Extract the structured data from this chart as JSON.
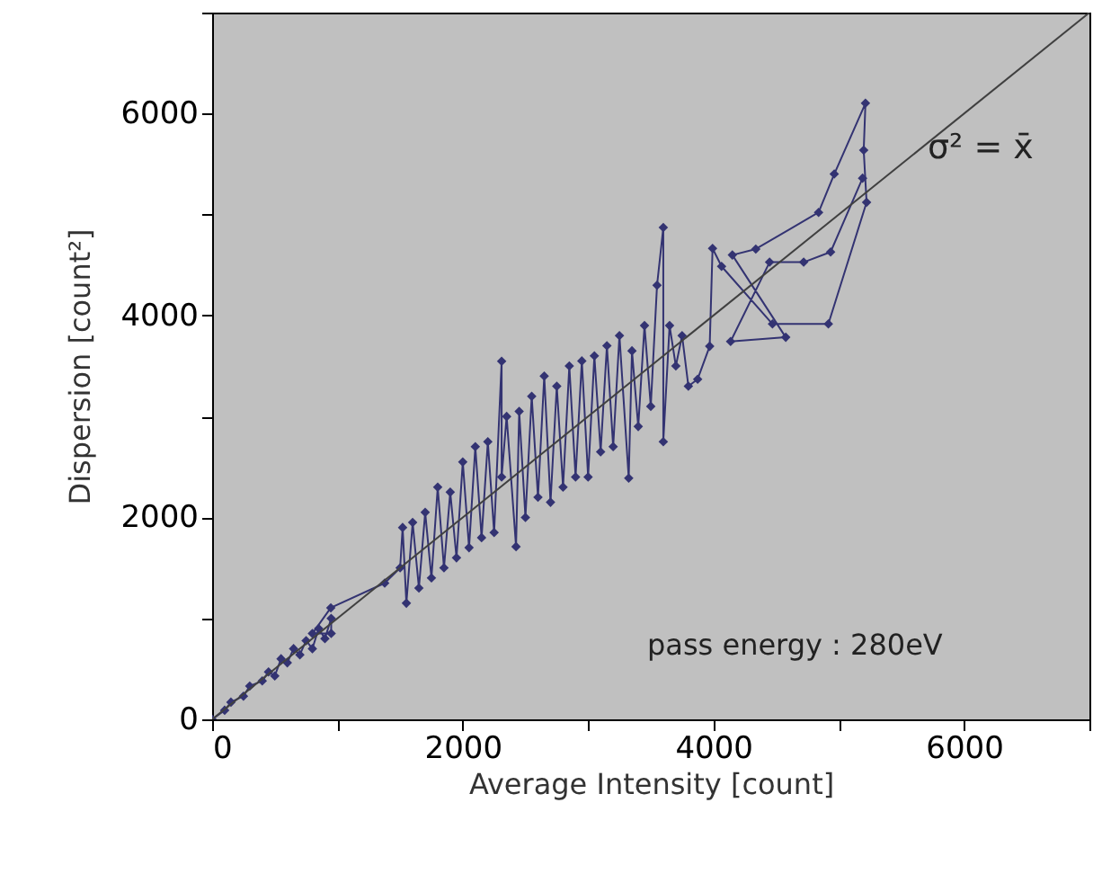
{
  "chart_data": {
    "type": "line",
    "xlabel": "Average Intensity   [count]",
    "ylabel": "Dispersion   [count²]",
    "xlim": [
      0,
      7000
    ],
    "ylim": [
      0,
      7000
    ],
    "xticks": [
      0,
      {
        "value": 1000,
        "label": null
      },
      2000,
      {
        "value": 3000,
        "label": null
      },
      4000,
      {
        "value": 5000,
        "label": null
      },
      6000,
      {
        "value": 7000,
        "label": null
      }
    ],
    "yticks": [
      0,
      {
        "value": 1000,
        "label": null
      },
      2000,
      {
        "value": 3000,
        "label": null
      },
      4000,
      {
        "value": 5000,
        "label": null
      },
      6000,
      {
        "value": 7000,
        "label": null
      }
    ],
    "grid": false,
    "marker": "diamond",
    "line_style": "solid",
    "annotations": [
      "σ² = x̄",
      "pass energy : 280eV"
    ],
    "series": [
      {
        "color": "#333372",
        "x": [
          0,
          100,
          150,
          250,
          300,
          400,
          450,
          500,
          550,
          600,
          650,
          700,
          750,
          800,
          850,
          900,
          950,
          950,
          800,
          947,
          1377,
          1500,
          1520,
          1550,
          1600,
          1650,
          1700,
          1750,
          1800,
          1850,
          1900,
          1950,
          2000,
          2050,
          2100,
          2150,
          2200,
          2250,
          2310,
          2310,
          2350,
          2425,
          2450,
          2500,
          2550,
          2600,
          2650,
          2700,
          2750,
          2800,
          2850,
          2900,
          2950,
          3000,
          3050,
          3100,
          3150,
          3200,
          3250,
          3324,
          3350,
          3400,
          3450,
          3500,
          3550,
          3600,
          3600,
          3650,
          3700,
          3750,
          3800,
          3874,
          3970,
          3993,
          4065,
          4471,
          4917,
          5222,
          5199,
          5213,
          4964,
          4839,
          4338,
          4151,
          4577,
          4137,
          4448,
          4720,
          4935,
          5190
        ],
        "values": [
          0,
          90,
          170,
          230,
          330,
          380,
          470,
          430,
          600,
          560,
          700,
          640,
          780,
          700,
          900,
          800,
          1000,
          850,
          850,
          1105,
          1349,
          1500,
          1900,
          1150,
          1950,
          1300,
          2050,
          1400,
          2300,
          1500,
          2250,
          1600,
          2550,
          1700,
          2700,
          1800,
          2750,
          1850,
          3547,
          2400,
          3000,
          1711,
          3050,
          2000,
          3200,
          2200,
          3400,
          2150,
          3300,
          2300,
          3500,
          2400,
          3550,
          2400,
          3600,
          2650,
          3700,
          2700,
          3800,
          2389,
          3650,
          2900,
          3900,
          3100,
          4300,
          4872,
          2750,
          3900,
          3500,
          3800,
          3300,
          3369,
          3695,
          4665,
          4486,
          3916,
          3916,
          5121,
          5638,
          6102,
          5401,
          5021,
          4658,
          4599,
          3784,
          3743,
          4528,
          4528,
          4629,
          5360
        ]
      },
      {
        "type": "line",
        "color": "#404040",
        "x": [
          0,
          7000
        ],
        "values": [
          0,
          7000
        ],
        "marker": "none"
      }
    ]
  }
}
